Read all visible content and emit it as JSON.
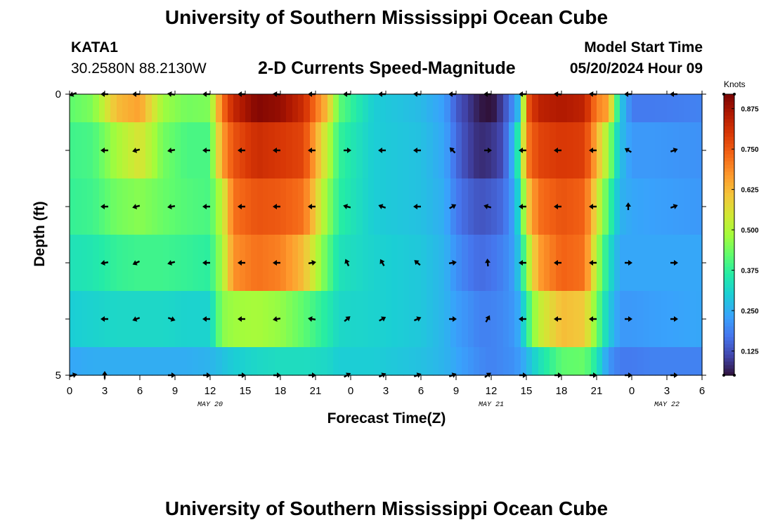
{
  "header": {
    "title": "University of Southern Mississippi Ocean Cube",
    "title_repeat": "University of Southern Mississippi Ocean Cube",
    "station": "KATA1",
    "coords": "30.2580N  88.2130W",
    "subtitle": "2-D Currents Speed-Magnitude",
    "model_start_label": "Model Start Time",
    "model_start_value": "05/20/2024 Hour 09"
  },
  "colors": {
    "arrow": "#000000",
    "frame": "#000000"
  },
  "chart_data": {
    "type": "heatmap",
    "title": "2-D Currents Speed-Magnitude",
    "xlabel": "Forecast Time(Z)",
    "ylabel": "Depth (ft)",
    "x_range_hours": [
      0,
      54
    ],
    "y_range_ft": [
      0,
      5
    ],
    "x_ticks": [
      "0",
      "3",
      "6",
      "9",
      "12",
      "15",
      "18",
      "21",
      "0",
      "3",
      "6",
      "9",
      "12",
      "15",
      "18",
      "21",
      "0",
      "3",
      "6"
    ],
    "y_ticks": [
      "0",
      "5"
    ],
    "day_labels": [
      {
        "hour": 12,
        "text": "MAY 20"
      },
      {
        "hour": 36,
        "text": "MAY 21"
      },
      {
        "hour": 51,
        "text": "MAY 22"
      }
    ],
    "colorbar": {
      "unit": "Knots",
      "min": 0.05,
      "max": 0.92,
      "ticks": [
        0.125,
        0.25,
        0.375,
        0.5,
        0.625,
        0.75,
        0.875
      ],
      "tick_labels": [
        "0.125",
        "0.250",
        "0.375",
        "0.500",
        "0.625",
        "0.750",
        "0.875"
      ]
    },
    "speed_keyframes": [
      {
        "h": 0,
        "v": [
          0.42,
          0.39,
          0.38,
          0.34,
          0.3,
          0.24
        ]
      },
      {
        "h": 2,
        "v": [
          0.45,
          0.4,
          0.39,
          0.35,
          0.31,
          0.25
        ]
      },
      {
        "h": 4,
        "v": [
          0.62,
          0.49,
          0.44,
          0.38,
          0.32,
          0.25
        ]
      },
      {
        "h": 6,
        "v": [
          0.66,
          0.56,
          0.46,
          0.39,
          0.32,
          0.25
        ]
      },
      {
        "h": 8,
        "v": [
          0.48,
          0.44,
          0.43,
          0.39,
          0.32,
          0.25
        ]
      },
      {
        "h": 10,
        "v": [
          0.44,
          0.4,
          0.41,
          0.38,
          0.31,
          0.25
        ]
      },
      {
        "h": 12,
        "v": [
          0.45,
          0.4,
          0.4,
          0.37,
          0.31,
          0.26
        ]
      },
      {
        "h": 13,
        "v": [
          0.72,
          0.66,
          0.52,
          0.49,
          0.46,
          0.28
        ]
      },
      {
        "h": 14,
        "v": [
          0.83,
          0.76,
          0.72,
          0.68,
          0.48,
          0.3
        ]
      },
      {
        "h": 16,
        "v": [
          0.91,
          0.82,
          0.76,
          0.72,
          0.49,
          0.32
        ]
      },
      {
        "h": 18,
        "v": [
          0.89,
          0.8,
          0.75,
          0.7,
          0.47,
          0.33
        ]
      },
      {
        "h": 20,
        "v": [
          0.82,
          0.78,
          0.72,
          0.62,
          0.42,
          0.33
        ]
      },
      {
        "h": 22,
        "v": [
          0.62,
          0.52,
          0.47,
          0.42,
          0.36,
          0.32
        ]
      },
      {
        "h": 23,
        "v": [
          0.42,
          0.38,
          0.37,
          0.34,
          0.32,
          0.3
        ]
      },
      {
        "h": 26,
        "v": [
          0.3,
          0.3,
          0.3,
          0.31,
          0.31,
          0.3
        ]
      },
      {
        "h": 30,
        "v": [
          0.27,
          0.28,
          0.28,
          0.29,
          0.29,
          0.28
        ]
      },
      {
        "h": 32,
        "v": [
          0.23,
          0.24,
          0.25,
          0.26,
          0.26,
          0.26
        ]
      },
      {
        "h": 33,
        "v": [
          0.14,
          0.16,
          0.18,
          0.21,
          0.23,
          0.24
        ]
      },
      {
        "h": 34,
        "v": [
          0.1,
          0.11,
          0.15,
          0.18,
          0.21,
          0.22
        ]
      },
      {
        "h": 35,
        "v": [
          0.06,
          0.08,
          0.13,
          0.16,
          0.19,
          0.2
        ]
      },
      {
        "h": 36,
        "v": [
          0.04,
          0.09,
          0.14,
          0.17,
          0.19,
          0.19
        ]
      },
      {
        "h": 37,
        "v": [
          0.11,
          0.12,
          0.16,
          0.19,
          0.2,
          0.2
        ]
      },
      {
        "h": 38,
        "v": [
          0.22,
          0.28,
          0.24,
          0.23,
          0.22,
          0.21
        ]
      },
      {
        "h": 38.5,
        "v": [
          0.3,
          0.42,
          0.36,
          0.32,
          0.26,
          0.23
        ]
      },
      {
        "h": 39,
        "v": [
          0.74,
          0.7,
          0.58,
          0.46,
          0.36,
          0.26
        ]
      },
      {
        "h": 40,
        "v": [
          0.84,
          0.78,
          0.72,
          0.66,
          0.52,
          0.33
        ]
      },
      {
        "h": 42,
        "v": [
          0.86,
          0.8,
          0.76,
          0.74,
          0.62,
          0.42
        ]
      },
      {
        "h": 44,
        "v": [
          0.84,
          0.79,
          0.74,
          0.72,
          0.6,
          0.43
        ]
      },
      {
        "h": 45,
        "v": [
          0.7,
          0.64,
          0.56,
          0.5,
          0.44,
          0.35
        ]
      },
      {
        "h": 46,
        "v": [
          0.66,
          0.48,
          0.4,
          0.34,
          0.3,
          0.22
        ]
      },
      {
        "h": 47,
        "v": [
          0.3,
          0.28,
          0.26,
          0.24,
          0.22,
          0.18
        ]
      },
      {
        "h": 48,
        "v": [
          0.18,
          0.22,
          0.24,
          0.24,
          0.22,
          0.18
        ]
      },
      {
        "h": 50,
        "v": [
          0.18,
          0.22,
          0.23,
          0.24,
          0.23,
          0.19
        ]
      },
      {
        "h": 54,
        "v": [
          0.19,
          0.21,
          0.22,
          0.24,
          0.24,
          0.19
        ]
      }
    ],
    "arrow_rows_depth_ft": [
      0,
      1,
      2,
      3,
      4,
      5
    ],
    "arrow_columns_hour": [
      0.3,
      3,
      5.7,
      8.7,
      11.7,
      14.7,
      17.7,
      20.7,
      23.7,
      26.7,
      29.7,
      32.7,
      35.7,
      38.7,
      41.7,
      44.7,
      47.7,
      51.6
    ],
    "arrow_direction_deg": [
      [
        200,
        180,
        180,
        170,
        180,
        180,
        175,
        180,
        180,
        180,
        175,
        180,
        180,
        180,
        175,
        175,
        180,
        180
      ],
      [
        null,
        180,
        195,
        190,
        180,
        180,
        180,
        180,
        0,
        180,
        180,
        135,
        0,
        180,
        180,
        180,
        150,
        20
      ],
      [
        null,
        180,
        195,
        190,
        180,
        180,
        180,
        180,
        165,
        160,
        180,
        30,
        165,
        180,
        180,
        180,
        90,
        20
      ],
      [
        null,
        190,
        205,
        195,
        180,
        180,
        180,
        10,
        115,
        120,
        140,
        10,
        95,
        180,
        180,
        180,
        0,
        0
      ],
      [
        null,
        180,
        200,
        340,
        180,
        180,
        190,
        170,
        40,
        30,
        25,
        0,
        60,
        180,
        180,
        180,
        0,
        0
      ],
      [
        15,
        90,
        null,
        0,
        0,
        0,
        0,
        0,
        30,
        25,
        20,
        20,
        35,
        0,
        0,
        0,
        0,
        0
      ]
    ]
  }
}
